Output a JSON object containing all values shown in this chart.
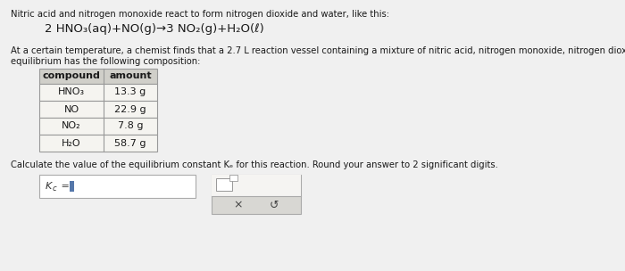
{
  "bg_color": "#f0f0f0",
  "paper_color": "#f8f7f5",
  "title_line1": "Nitric acid and nitrogen monoxide react to form nitrogen dioxide and water, like this:",
  "equation": "2 HNO₃(aq)+NO(g)→3 NO₂(g)+H₂O(ℓ)",
  "body_text1": "At a certain temperature, a chemist finds that a 2.7 L reaction vessel containing a mixture of nitric acid, nitrogen monoxide, nitrogen dioxide, and water at",
  "body_text2": "equilibrium has the following composition:",
  "table_headers": [
    "compound",
    "amount"
  ],
  "table_rows": [
    [
      "HNO₃",
      "13.3 g"
    ],
    [
      "NO",
      "22.9 g"
    ],
    [
      "NO₂",
      "7.8 g"
    ],
    [
      "H₂O",
      "58.7 g"
    ]
  ],
  "calc_text": "Calculate the value of the equilibrium constant Kₑ for this reaction. Round your answer to 2 significant digits.",
  "kc_label": "Kₑ = ",
  "input_box_color": "#ffffff",
  "table_header_bg": "#d0cfc9",
  "table_row_bg": "#f5f4f0",
  "table_border_color": "#999999",
  "font_size_body": 7.2,
  "font_size_eq": 9.5,
  "font_size_table": 8.0
}
